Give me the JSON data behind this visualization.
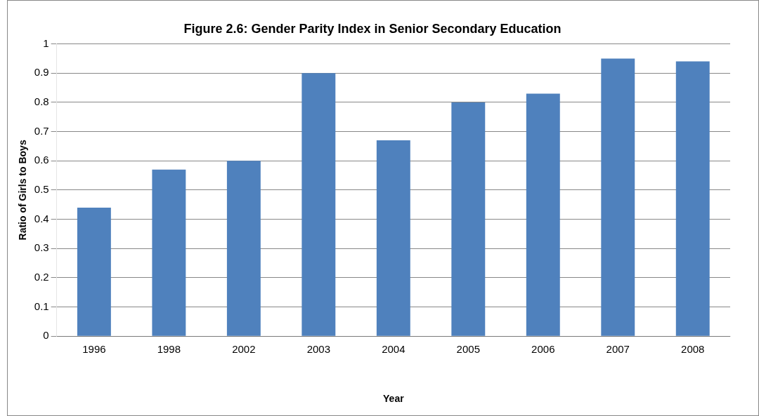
{
  "chart_data": {
    "type": "bar",
    "title": "Figure 2.6: Gender Parity Index in Senior Secondary Education",
    "xlabel": "Year",
    "ylabel": "Ratio of Girls to Boys",
    "categories": [
      "1996",
      "1998",
      "2002",
      "2003",
      "2004",
      "2005",
      "2006",
      "2007",
      "2008"
    ],
    "values": [
      0.44,
      0.57,
      0.6,
      0.9,
      0.67,
      0.8,
      0.83,
      0.95,
      0.94
    ],
    "color": "#4f81bd",
    "ylim": [
      0,
      1
    ],
    "yticks": [
      0,
      0.1,
      0.2,
      0.3,
      0.4,
      0.5,
      0.6,
      0.7,
      0.8,
      0.9,
      1
    ],
    "grid": "y"
  }
}
